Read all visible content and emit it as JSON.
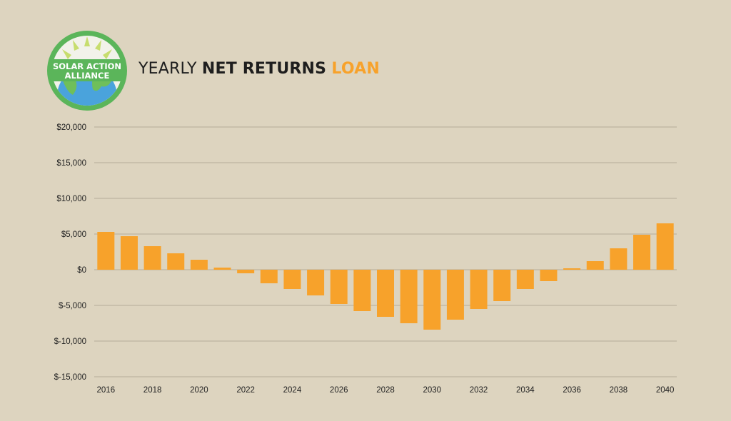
{
  "logo": {
    "line1": "SOLAR ACTION",
    "line2": "ALLIANCE",
    "colors": {
      "ring": "#5bb55a",
      "sun": "#c7dd6e",
      "globe": "#4aa3dc",
      "land": "#6fbf5a"
    }
  },
  "title": {
    "part1": "YEARLY",
    "part2": "NET RETURNS",
    "part3": "LOAN"
  },
  "colors": {
    "bar": "#f7a22b",
    "grid": "#b5ad98",
    "background": "#ddd4bf",
    "text": "#222222"
  },
  "chart_data": {
    "type": "bar",
    "x": [
      2016,
      2017,
      2018,
      2019,
      2020,
      2021,
      2022,
      2023,
      2024,
      2025,
      2026,
      2027,
      2028,
      2029,
      2030,
      2031,
      2032,
      2033,
      2034,
      2035,
      2036,
      2037,
      2038,
      2039,
      2040
    ],
    "values": [
      5300,
      4700,
      3300,
      2300,
      1400,
      300,
      -500,
      -1900,
      -2700,
      -3600,
      -4800,
      -5800,
      -6600,
      -7500,
      -8400,
      -7000,
      -5500,
      -4400,
      -2700,
      -1600,
      200,
      1200,
      3000,
      4900,
      6500
    ],
    "xtick_labels": [
      "2016",
      "2018",
      "2020",
      "2022",
      "2024",
      "2026",
      "2028",
      "2030",
      "2032",
      "2034",
      "2036",
      "2038",
      "2040"
    ],
    "yticks": [
      20000,
      15000,
      10000,
      5000,
      0,
      -5000,
      -10000,
      -15000
    ],
    "ytick_labels": [
      "$20,000",
      "$15,000",
      "$10,000",
      "$5,000",
      "$0",
      "$-5,000",
      "$-10,000",
      "$-15,000"
    ],
    "ylim": [
      -15000,
      20000
    ],
    "xlabel": "",
    "ylabel": "",
    "grid": true,
    "legend": "none"
  }
}
